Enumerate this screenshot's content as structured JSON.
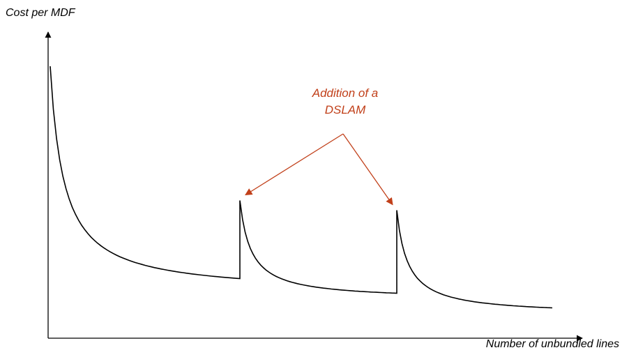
{
  "chart_data": {
    "type": "line",
    "title": "",
    "xlabel": "Number of unbundled lines",
    "ylabel": "Cost per MDF",
    "grid": false,
    "legend": "none",
    "axis_ticks": "none",
    "series": [
      {
        "values_description_x": [
          0,
          100,
          200,
          300,
          400,
          500,
          600,
          700
        ],
        "segments": [
          {
            "x_start": 3,
            "x_end": 275,
            "y_start": 100,
            "y_end": 13
          },
          {
            "x_start": 275,
            "x_end": 500,
            "y_start": 45,
            "y_end": 7
          },
          {
            "x_start": 500,
            "x_end": 723,
            "y_start": 41,
            "y_end": 1
          }
        ]
      }
    ],
    "annotation": {
      "lines": [
        "Addition of a",
        "DSLAM"
      ],
      "color": "#c1401a",
      "arrow_targets": [
        "first-step",
        "second-step"
      ]
    },
    "colors": {
      "curve": "#000000",
      "axis": "#000000"
    }
  }
}
